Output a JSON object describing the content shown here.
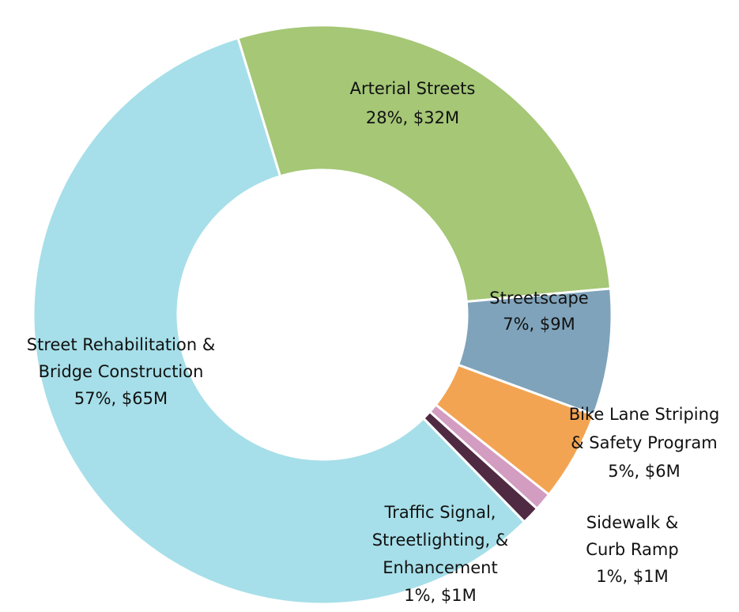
{
  "chart_data": {
    "type": "donut",
    "categories": [
      [
        "Arterial Streets"
      ],
      [
        "Streetscape"
      ],
      [
        "Bike Lane Striping",
        "& Safety Program"
      ],
      [
        "Sidewalk &",
        "Curb Ramp"
      ],
      [
        "Traffic Signal,",
        "Streetlighting, &",
        "Enhancement"
      ],
      [
        "Street Rehabilitation &",
        "Bridge Construction"
      ]
    ],
    "values": [
      28,
      7,
      5,
      1,
      1,
      57
    ],
    "value_labels": [
      "28%, $32M",
      "7%, $9M",
      "5%, $6M",
      "1%, $1M",
      "1%, $1M",
      "57%, $65M"
    ],
    "colors": [
      "#a5c776",
      "#7fa3bb",
      "#f3a452",
      "#d39cc1",
      "#4f2a42",
      "#a6dfe9"
    ]
  }
}
